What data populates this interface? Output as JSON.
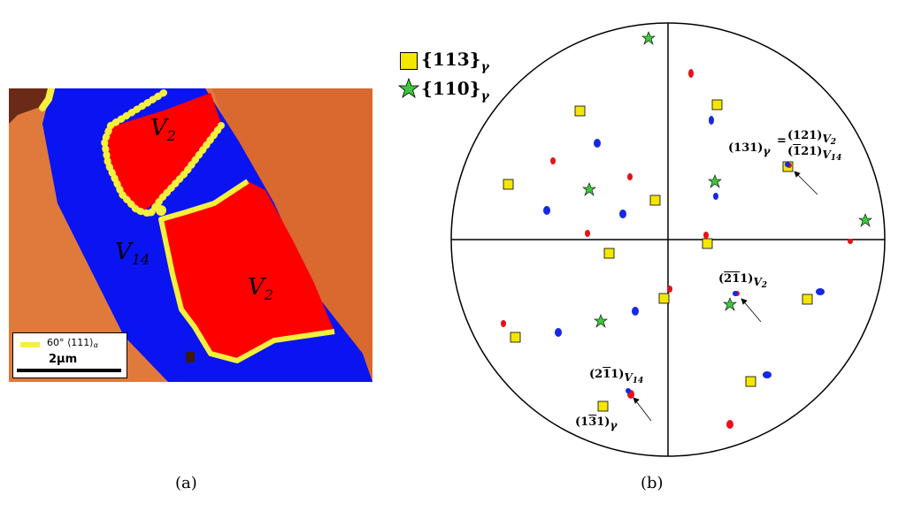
{
  "panel_a": {
    "label": "(a)",
    "region_labels": [
      {
        "name": "V",
        "sub": "2"
      },
      {
        "name": "V",
        "sub": "14"
      },
      {
        "name": "V",
        "sub": "2"
      }
    ],
    "legend_text": "60° ⟨111⟩",
    "legend_sub": "α",
    "scale_label": "2μm",
    "colors": {
      "orange": "#e1783c",
      "blue": "#0a14f0",
      "red": "#ff0000",
      "yellow_boundary": "#f5f03c",
      "dark_brown": "#5a2814"
    }
  },
  "panel_b": {
    "label": "(b)",
    "legend": [
      {
        "symbol": "square",
        "color": "#f5e600",
        "text": "{113}",
        "sub": "γ"
      },
      {
        "symbol": "star",
        "color": "#3cc83c",
        "text": "{110}",
        "sub": "γ"
      }
    ],
    "annotations": {
      "a131_left": "(131)",
      "a131_left_sub": "γ",
      "a131_eq": "=",
      "a121_top": "(121)",
      "a121_top_sub": "V",
      "a121_top_subsub": "2",
      "a121_bot_pre": "(",
      "a121_bot_bar": "1",
      "a121_bot_post": "21)",
      "a121_bot_sub": "V",
      "a121_bot_subsub": "14",
      "a211_pre": "(",
      "a211_bar1": "2",
      "a211_bar2": "1",
      "a211_post": "1)",
      "a211_sub": "V",
      "a211_subsub": "2",
      "b211_pre": "(2",
      "b211_bar": "1",
      "b211_post": "1)",
      "b211_sub": "V",
      "b211_subsub": "14",
      "c131_pre": "(1",
      "c131_bar": "3",
      "c131_post": "1)",
      "c131_sub": "γ"
    },
    "colors": {
      "red_spot": "#e8101a",
      "blue_spot": "#1428e6"
    }
  }
}
